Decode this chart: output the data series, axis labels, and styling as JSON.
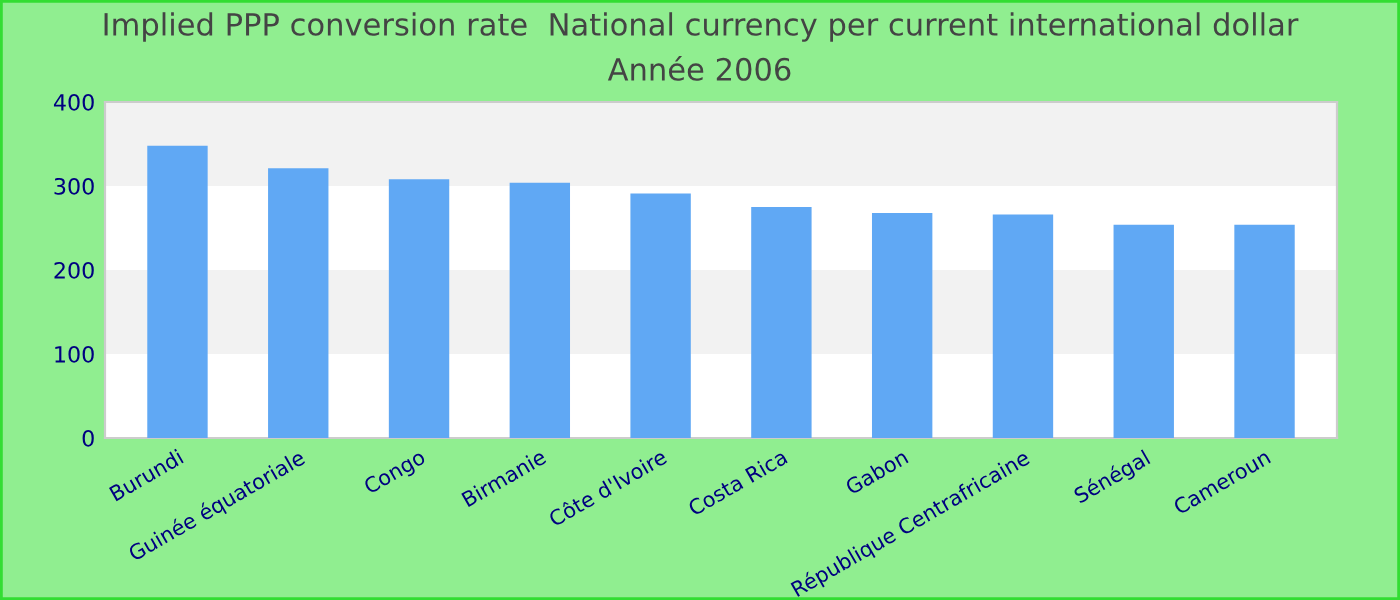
{
  "chart_data": {
    "type": "bar",
    "title": "Implied PPP conversion rate  National currency per current international dollar",
    "subtitle": "Année 2006",
    "categories": [
      "Burundi",
      "Guinée équatoriale",
      "Congo",
      "Birmanie",
      "Côte d'Ivoire",
      "Costa Rica",
      "Gabon",
      "République Centrafricaine",
      "Sénégal",
      "Cameroun"
    ],
    "values": [
      348,
      321,
      308,
      304,
      291,
      275,
      268,
      266,
      254,
      254
    ],
    "color": "#60a8f4",
    "ylim": [
      0,
      400
    ],
    "yticks": [
      0,
      100,
      200,
      300,
      400
    ],
    "bands": [
      {
        "axis": "y",
        "from": 100,
        "to": 200,
        "color": "#f2f2f2"
      },
      {
        "axis": "y",
        "from": 300,
        "to": 400,
        "color": "#f2f2f2"
      }
    ]
  }
}
